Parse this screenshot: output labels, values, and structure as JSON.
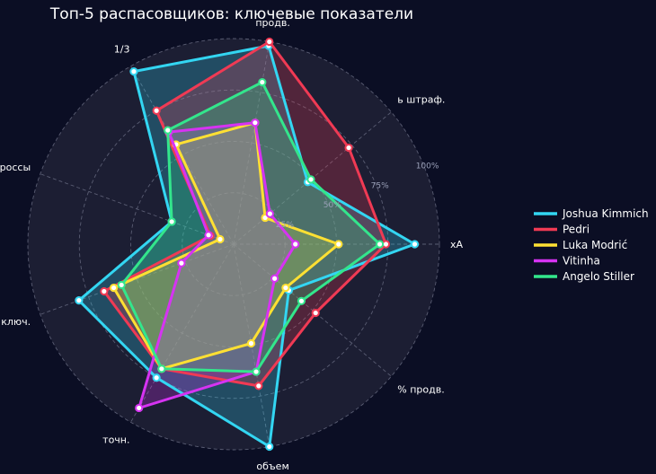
{
  "chart_data": {
    "type": "radar",
    "title": "Топ-5 распасовщиков: ключевые показатели",
    "axes": [
      "xA",
      "% продв.",
      "объем",
      "точн.",
      "ключ.",
      "кроссы",
      "1/3",
      "продв.",
      "ь штраф."
    ],
    "radial_range": [
      0,
      100
    ],
    "radial_ticks": [
      25,
      50,
      75,
      100
    ],
    "radial_tick_labels": [
      "25%",
      "50%",
      "75%",
      "100%"
    ],
    "grid": true,
    "legend_position": "right",
    "series": [
      {
        "name": "Joshua Kimmich",
        "color": "#33d6f2",
        "values": [
          88,
          35,
          100,
          75,
          80,
          32,
          97,
          98,
          47
        ]
      },
      {
        "name": "Pedri",
        "color": "#f03a54",
        "values": [
          74,
          52,
          70,
          70,
          67,
          12,
          75,
          100,
          73
        ]
      },
      {
        "name": "Luka Modrić",
        "color": "#ffe033",
        "values": [
          51,
          33,
          49,
          70,
          62,
          7,
          56,
          60,
          20
        ]
      },
      {
        "name": "Vitinha",
        "color": "#d633f2",
        "values": [
          30,
          26,
          63,
          92,
          27,
          13,
          63,
          60,
          23
        ]
      },
      {
        "name": "Angelo Stiller",
        "color": "#33e68c",
        "values": [
          71,
          43,
          63,
          70,
          58,
          32,
          64,
          80,
          49
        ]
      }
    ]
  }
}
